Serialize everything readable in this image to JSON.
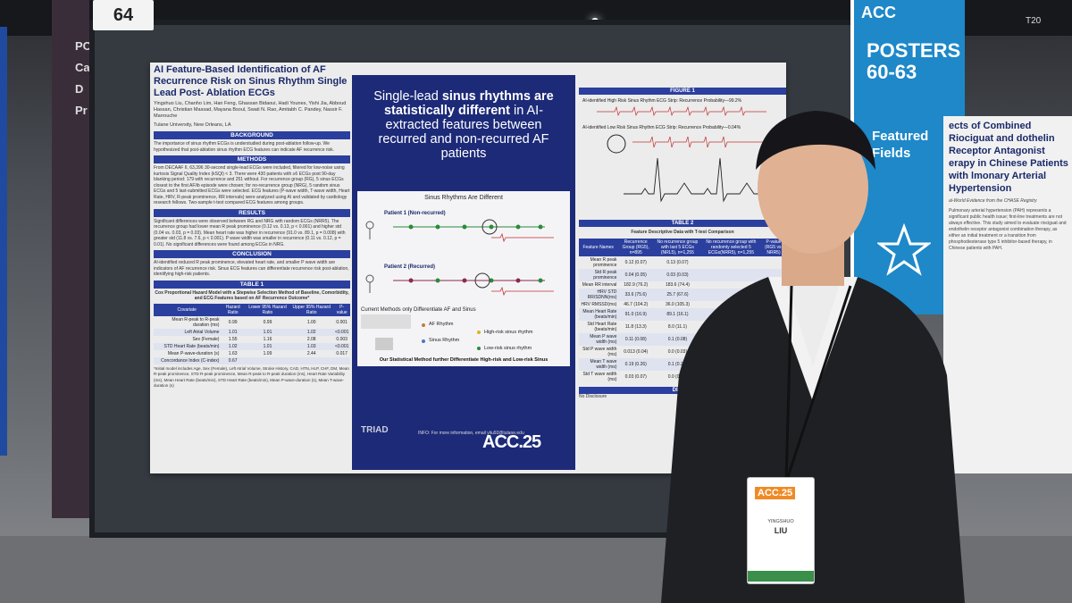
{
  "board_number": "64",
  "left_panel_text": "PO Car D Pr",
  "poster": {
    "title": "AI Feature-Based Identification of AF Recurrence Risk on Sinus Rhythm Single Lead Post- Ablation ECGs",
    "authors": "Yingshuo Liu, Chanho Lim, Han Feng, Ghassan Bidaoui, Hadi Younes, Yishi Jia, Abboud Hassan, Christian Massad, Mayana Bsoul, Swati N. Rao, Amitabh C. Pandey, Nassir F. Marrouche",
    "affiliation": "Tulane University, New Orleans, LA",
    "sections": {
      "background": "BACKGROUND",
      "methods": "METHODS",
      "results": "RESULTS",
      "conclusion": "CONCLUSION",
      "table1": "TABLE 1"
    },
    "background_text": "The importance of sinus rhythm ECGs is understudied during post-ablation follow-up. We hypothesized that post-ablation sinus rhythm ECG features can indicate AF recurrence risk.",
    "methods_text": "From DECAAF II, 63,396 30-second single-lead ECGs were included, filtered for low-noise using kurtosis Signal Quality Index (kSQI) < 3. There were 430 patients with ≥6 ECGs post 90-day blanking period: 179 with recurrence and 251 without. For recurrence group (RG), 5 sinus ECGs closest to the first AF/ib episode were chosen; for no-recurrence group (NRG), 5 random sinus ECGs and 5 last-submitted ECGs were selected. ECG features (P-wave width, T-wave width, Heart Rate, HRV, R-peak prominence, RR intervals) were analyzed using AI and validated by cardiology research fellows. Two-sample t-test compared ECG features among groups.",
    "results_text": "Significant differences were observed between RG and NRG with random ECGs (NRR5). The recurrence group had lower mean R peak prominence (0.12 vs. 0.13, p < 0.001) and higher std (0.04 vs. 0.03, p = 0.03). Mean heart rate was higher in recurrence (91.0 vs. 89.1, p = 0.008) with greater std (11.8 vs. 7.6, p < 0.001). P wave width was smaller in recurrence (0.11 vs. 0.12, p = 0.01). No significant differences were found among ECGs in NRG.",
    "conclusion_text": "AI-identified reduced R peak prominence, elevated heart rate, and smaller P wave width are indicators of AF recurrence risk. Sinus ECG features can differentiate recurrence risk post-ablation, identifying high-risk patients.",
    "table1_caption": "Cox Proportional Hazard Model with a Stepwise Selection Method of Baseline, Comorbidity, and ECG Features based on AF Recurrence Outcome*",
    "table1_headers": [
      "Covariate",
      "Hazard Ratio",
      "Lower 95% Hazard Ratio",
      "Upper 95% Hazard Ratio",
      "P-value"
    ],
    "table1_rows": [
      [
        "Mean R-peak to R-peak duration (ms)",
        "0.99",
        "0.99",
        "1.00",
        "0.001"
      ],
      [
        "Left Atrial Volume",
        "1.01",
        "1.01",
        "1.02",
        "<0.001"
      ],
      [
        "Sex (Female)",
        "1.55",
        "1.16",
        "2.08",
        "0.003"
      ],
      [
        "STD Heart Rate (beats/min)",
        "1.02",
        "1.01",
        "1.03",
        "<0.001"
      ],
      [
        "Mean P-wave-duration (s)",
        "1.63",
        "1.09",
        "2.44",
        "0.017"
      ],
      [
        "Concordance Index (C-index)",
        "0.67",
        "",
        "",
        ""
      ]
    ],
    "table1_note": "*Initial model includes Age, Sex (Female), Left Atrial Volume, Stroke History, CAD, HTN, HLP, CHF, DM, Mean R-peak prominence, STD R-peak prominence, Mean R-peak to R-peak duration (ms), Heart Rate Variability (ms), Mean Heart Rate (beats/min), STD Heart Rate (beats/min), Mean P-wave-duration (s), Mean T-wave-duration (s)",
    "hero_html_parts": [
      "Single-lead ",
      "sinus rhythms are statistically different",
      " in AI-extracted features between recurred and non-recurred AF patients"
    ],
    "inner_title": "Sinus Rhythms Are Different",
    "patient1": "Patient 1 (Non-recurred)",
    "patient2": "Patient 2 (Recurred)",
    "current_methods": "Current Methods only Differentiate AF and Sinus",
    "af_rhythm": "AF Rhythm",
    "sinus_rhythm": "Sinus Rhythm",
    "high_risk": "High-risk sinus rhythm",
    "low_risk": "Low-risk sinus rhythm",
    "inner_foot": "Our Statistical Method further Differentiate High-risk and Low-risk Sinus",
    "triad": "TRIAD",
    "info": "INFO: For more information, email yliu92@tulane.edu",
    "acc_logo": "ACC.25",
    "figure1": "FIGURE 1",
    "strip_high": "AI-identified High Risk Sinus Rhythm ECG Strip: Recurrence Probability—99.2%",
    "strip_low": "AI-identified Low Risk Sinus Rhythm ECG Strip: Recurrence Probability—0.04%",
    "table2": "TABLE 2",
    "table2_caption": "Feature Descriptive Data with T-test Comparison",
    "table2_headers": [
      "Feature Names",
      "Recurrence Group (RG5), n=895",
      "No recurrence group with last 5 ECGs (NRL5), n=1,255",
      "No recurrence group with randomly selected 5 ECGs(NRR5), n=1,255",
      "P-value (RG5 vs. NRR5)"
    ],
    "table2_rows": [
      [
        "Mean R peak prominence",
        "0.12 (0.07)",
        "0.13 (0.07)",
        "",
        ""
      ],
      [
        "Std R peak prominence",
        "0.04 (0.05)",
        "0.03 (0.03)",
        "",
        ""
      ],
      [
        "Mean RR interval",
        "182.9 (76.2)",
        "183.6 (74.4)",
        "",
        ""
      ],
      [
        "HRV STD RR/SDNN(ms)",
        "33.6 (75.6)",
        "25.7 (67.6)",
        "",
        ""
      ],
      [
        "HRV RMSSD(ms)",
        "46.7 (104.2)",
        "36.0 (105.3)",
        "",
        ""
      ],
      [
        "Mean Heart Rate (beats/min)",
        "91.0 (16.9)",
        "89.1 (16.1)",
        "",
        ""
      ],
      [
        "Std Heart Rate (beats/min)",
        "11.8 (13.3)",
        "8.0 (11.1)",
        "",
        ""
      ],
      [
        "Mean P wave width (ms)",
        "0.11 (0.08)",
        "0.1 (0.08)",
        "",
        ""
      ],
      [
        "Std P wave width (ms)",
        "0.013 (0.04)",
        "0.0 (0.03)",
        "",
        ""
      ],
      [
        "Mean T wave width (ms)",
        "0.19 (0.26)",
        "0.1 (0.27)",
        "",
        ""
      ],
      [
        "Std T wave width (ms)",
        "0.03 (0.07)",
        "0.0 (0.07)",
        "",
        ""
      ]
    ],
    "disclosure_h": "DISCLO",
    "no_disclosure": "No Disclosure"
  },
  "banner": {
    "top": "ACC",
    "posters_line1": "POSTERS",
    "posters_line2": "60-63",
    "featured_line1": "Featured",
    "featured_line2": "Fields"
  },
  "right_poster": {
    "title": "ects of Combined Riociguat and dothelin Receptor Antagonist erapy in Chinese Patients with lmonary Arterial Hypertension",
    "subtitle": "al-World Evidence from the CHASE Registry",
    "text": "Pulmonary arterial hypertension (PAH) represents a significant public health issue; first-line treatments are not always effective. This study aimed to evaluate riociguat and endothelin receptor antagonist combination therapy, as either an initial treatment or a transition from phosphodiesterase type 5 inhibitor-based therapy, in Chinese patients with PAH."
  },
  "t20": "T20",
  "badge": {
    "acc": "ACC.25",
    "name1": "YINGSHUO",
    "name2": "LIU"
  },
  "colors": {
    "poster_blue": "#2b3f9e",
    "hero_navy": "#1c2a78",
    "banner_blue": "#1e88c8",
    "badge_orange": "#f08a24"
  }
}
